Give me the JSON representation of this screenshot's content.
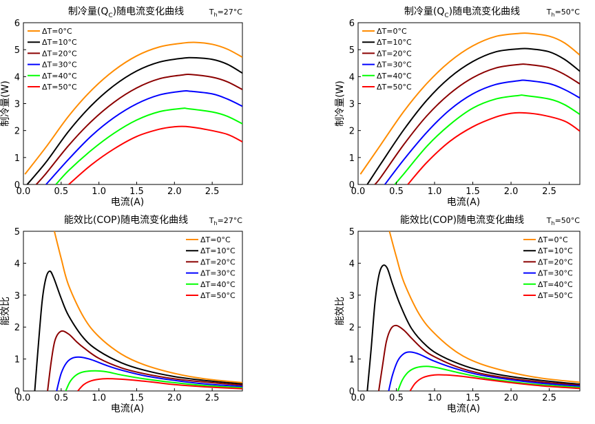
{
  "chart_data": [
    {
      "type": "line",
      "title": "制冷量(Q",
      "title_sub": "C",
      "title_suffix": ")随电流变化曲线",
      "condition_main": "T",
      "condition_sub": "h",
      "condition_suffix": "=27°C",
      "xlabel": "电流(A)",
      "ylabel": "制冷量(W)",
      "xlim": [
        0,
        2.9
      ],
      "ylim": [
        0,
        6
      ],
      "xticks": [
        "0.0",
        "0.5",
        "1.0",
        "1.5",
        "2.0",
        "2.5"
      ],
      "yticks": [
        "0",
        "1",
        "2",
        "3",
        "4",
        "5",
        "6"
      ],
      "legend_position": "top-left",
      "grid": false,
      "series": [
        {
          "name": "ΔT=0°C",
          "color": "#ff8c00",
          "x": [
            0.02,
            0.3,
            0.6,
            0.9,
            1.2,
            1.5,
            1.8,
            2.1,
            2.28,
            2.5,
            2.7,
            2.9
          ],
          "y": [
            0.38,
            1.39,
            2.54,
            3.49,
            4.23,
            4.77,
            5.1,
            5.24,
            5.27,
            5.2,
            5.02,
            4.72
          ]
        },
        {
          "name": "ΔT=10°C",
          "color": "#000000",
          "x": [
            0.05,
            0.3,
            0.6,
            0.9,
            1.2,
            1.5,
            1.8,
            2.1,
            2.25,
            2.5,
            2.7,
            2.9
          ],
          "y": [
            0.0,
            0.83,
            1.98,
            2.93,
            3.67,
            4.21,
            4.54,
            4.68,
            4.7,
            4.64,
            4.46,
            4.13
          ]
        },
        {
          "name": "ΔT=20°C",
          "color": "#8b0000",
          "x": [
            0.17,
            0.3,
            0.6,
            0.9,
            1.2,
            1.5,
            1.8,
            2.1,
            2.22,
            2.5,
            2.7,
            2.9
          ],
          "y": [
            0.0,
            0.41,
            1.45,
            2.34,
            3.05,
            3.58,
            3.92,
            4.06,
            4.08,
            3.98,
            3.81,
            3.52
          ]
        },
        {
          "name": "ΔT=30°C",
          "color": "#0000ff",
          "x": [
            0.3,
            0.6,
            0.9,
            1.2,
            1.5,
            1.8,
            2.1,
            2.2,
            2.5,
            2.7,
            2.9
          ],
          "y": [
            0.0,
            0.94,
            1.8,
            2.48,
            2.99,
            3.32,
            3.46,
            3.46,
            3.36,
            3.17,
            2.9
          ]
        },
        {
          "name": "ΔT=40°C",
          "color": "#00ff00",
          "x": [
            0.43,
            0.6,
            0.9,
            1.2,
            1.5,
            1.8,
            2.1,
            2.18,
            2.5,
            2.7,
            2.9
          ],
          "y": [
            0.0,
            0.52,
            1.27,
            1.9,
            2.39,
            2.7,
            2.82,
            2.81,
            2.69,
            2.53,
            2.25
          ]
        },
        {
          "name": "ΔT=50°C",
          "color": "#ff0000",
          "x": [
            0.6,
            0.9,
            1.2,
            1.5,
            1.8,
            2.0,
            2.15,
            2.4,
            2.7,
            2.9
          ],
          "y": [
            0.0,
            0.73,
            1.32,
            1.78,
            2.05,
            2.14,
            2.15,
            2.05,
            1.86,
            1.58
          ]
        }
      ]
    },
    {
      "type": "line",
      "title": "制冷量(Q",
      "title_sub": "C",
      "title_suffix": ")随电流变化曲线",
      "condition_main": "T",
      "condition_sub": "h",
      "condition_suffix": "=50°C",
      "xlabel": "电流(A)",
      "ylabel": "制冷量(W)",
      "xlim": [
        0,
        2.9
      ],
      "ylim": [
        0,
        6
      ],
      "xticks": [
        "0.0",
        "0.5",
        "1.0",
        "1.5",
        "2.0",
        "2.5"
      ],
      "yticks": [
        "0",
        "1",
        "2",
        "3",
        "4",
        "5",
        "6"
      ],
      "legend_position": "top-left",
      "grid": false,
      "series": [
        {
          "name": "ΔT=0°C",
          "color": "#ff8c00",
          "x": [
            0.03,
            0.3,
            0.6,
            0.9,
            1.2,
            1.5,
            1.8,
            2.1,
            2.25,
            2.5,
            2.7,
            2.9
          ],
          "y": [
            0.38,
            1.49,
            2.72,
            3.75,
            4.56,
            5.14,
            5.49,
            5.6,
            5.6,
            5.5,
            5.25,
            4.8
          ]
        },
        {
          "name": "ΔT=10°C",
          "color": "#000000",
          "x": [
            0.12,
            0.3,
            0.6,
            0.9,
            1.2,
            1.5,
            1.8,
            2.1,
            2.25,
            2.5,
            2.7,
            2.9
          ],
          "y": [
            0.0,
            0.78,
            2.04,
            3.13,
            3.97,
            4.56,
            4.92,
            5.03,
            5.03,
            4.92,
            4.64,
            4.2
          ]
        },
        {
          "name": "ΔT=20°C",
          "color": "#8b0000",
          "x": [
            0.22,
            0.3,
            0.6,
            0.9,
            1.2,
            1.5,
            1.8,
            2.1,
            2.22,
            2.5,
            2.7,
            2.9
          ],
          "y": [
            0.0,
            0.28,
            1.49,
            2.55,
            3.37,
            3.96,
            4.32,
            4.45,
            4.45,
            4.33,
            4.08,
            3.73
          ]
        },
        {
          "name": "ΔT=30°C",
          "color": "#0000ff",
          "x": [
            0.35,
            0.6,
            0.9,
            1.2,
            1.5,
            1.8,
            2.1,
            2.2,
            2.5,
            2.7,
            2.9
          ],
          "y": [
            0.0,
            0.93,
            1.94,
            2.77,
            3.36,
            3.71,
            3.85,
            3.86,
            3.74,
            3.52,
            3.21
          ]
        },
        {
          "name": "ΔT=40°C",
          "color": "#00ff00",
          "x": [
            0.48,
            0.6,
            0.9,
            1.2,
            1.5,
            1.8,
            2.1,
            2.18,
            2.5,
            2.7,
            2.9
          ],
          "y": [
            0.0,
            0.4,
            1.42,
            2.22,
            2.83,
            3.17,
            3.3,
            3.3,
            3.17,
            2.96,
            2.6
          ]
        },
        {
          "name": "ΔT=50°C",
          "color": "#ff0000",
          "x": [
            0.65,
            0.9,
            1.2,
            1.5,
            1.8,
            2.0,
            2.15,
            2.4,
            2.7,
            2.9
          ],
          "y": [
            0.0,
            0.82,
            1.6,
            2.14,
            2.5,
            2.64,
            2.66,
            2.58,
            2.35,
            1.98
          ]
        }
      ]
    },
    {
      "type": "line",
      "title": "能效比(COP)随电流变化曲线",
      "title_sub": "",
      "title_suffix": "",
      "condition_main": "T",
      "condition_sub": "h",
      "condition_suffix": "=27°C",
      "xlabel": "电流(A)",
      "ylabel": "能效比",
      "xlim": [
        0,
        2.9
      ],
      "ylim": [
        0,
        5
      ],
      "xticks": [
        "0.0",
        "0.5",
        "1.0",
        "1.5",
        "2.0",
        "2.5"
      ],
      "yticks": [
        "0",
        "1",
        "2",
        "3",
        "4",
        "5"
      ],
      "legend_position": "top-right",
      "grid": false,
      "series": [
        {
          "name": "ΔT=0°C",
          "color": "#ff8c00",
          "x": [
            0.41,
            0.5,
            0.6,
            0.8,
            1.0,
            1.3,
            1.6,
            2.0,
            2.4,
            2.9
          ],
          "y": [
            5.0,
            4.15,
            3.3,
            2.3,
            1.7,
            1.15,
            0.82,
            0.55,
            0.38,
            0.26
          ]
        },
        {
          "name": "ΔT=10°C",
          "color": "#000000",
          "x": [
            0.15,
            0.2,
            0.25,
            0.3,
            0.35,
            0.4,
            0.5,
            0.6,
            0.8,
            1.0,
            1.3,
            1.6,
            2.0,
            2.4,
            2.9
          ],
          "y": [
            0.0,
            1.5,
            2.85,
            3.55,
            3.75,
            3.55,
            2.9,
            2.35,
            1.65,
            1.25,
            0.88,
            0.65,
            0.45,
            0.33,
            0.22
          ]
        },
        {
          "name": "ΔT=20°C",
          "color": "#8b0000",
          "x": [
            0.32,
            0.37,
            0.42,
            0.5,
            0.6,
            0.7,
            0.8,
            1.0,
            1.3,
            1.6,
            2.0,
            2.4,
            2.9
          ],
          "y": [
            0.0,
            0.95,
            1.6,
            1.87,
            1.78,
            1.55,
            1.35,
            1.02,
            0.72,
            0.54,
            0.38,
            0.28,
            0.18
          ]
        },
        {
          "name": "ΔT=30°C",
          "color": "#0000ff",
          "x": [
            0.44,
            0.5,
            0.57,
            0.65,
            0.75,
            0.9,
            1.1,
            1.3,
            1.6,
            2.0,
            2.4,
            2.9
          ],
          "y": [
            0.0,
            0.55,
            0.88,
            1.03,
            1.06,
            0.98,
            0.8,
            0.65,
            0.48,
            0.33,
            0.22,
            0.14
          ]
        },
        {
          "name": "ΔT=40°C",
          "color": "#00ff00",
          "x": [
            0.56,
            0.62,
            0.7,
            0.8,
            0.95,
            1.1,
            1.3,
            1.6,
            2.0,
            2.4,
            2.9
          ],
          "y": [
            0.0,
            0.3,
            0.5,
            0.6,
            0.63,
            0.6,
            0.5,
            0.38,
            0.26,
            0.17,
            0.1
          ]
        },
        {
          "name": "ΔT=50°C",
          "color": "#ff0000",
          "x": [
            0.72,
            0.8,
            0.9,
            1.05,
            1.2,
            1.4,
            1.7,
            2.0,
            2.4,
            2.9
          ],
          "y": [
            0.0,
            0.2,
            0.32,
            0.38,
            0.38,
            0.35,
            0.28,
            0.2,
            0.13,
            0.07
          ]
        }
      ]
    },
    {
      "type": "line",
      "title": "能效比(COP)随电流变化曲线",
      "title_sub": "",
      "title_suffix": "",
      "condition_main": "T",
      "condition_sub": "h",
      "condition_suffix": "=50°C",
      "xlabel": "电流(A)",
      "ylabel": "能效比",
      "xlim": [
        0,
        2.9
      ],
      "ylim": [
        0,
        5
      ],
      "xticks": [
        "0.0",
        "0.5",
        "1.0",
        "1.5",
        "2.0",
        "2.5"
      ],
      "yticks": [
        "0",
        "1",
        "2",
        "3",
        "4",
        "5"
      ],
      "legend_position": "top-right",
      "grid": false,
      "series": [
        {
          "name": "ΔT=0°C",
          "color": "#ff8c00",
          "x": [
            0.41,
            0.5,
            0.6,
            0.8,
            1.0,
            1.3,
            1.6,
            2.0,
            2.4,
            2.9
          ],
          "y": [
            5.0,
            4.2,
            3.4,
            2.4,
            1.8,
            1.2,
            0.85,
            0.58,
            0.4,
            0.27
          ]
        },
        {
          "name": "ΔT=10°C",
          "color": "#000000",
          "x": [
            0.12,
            0.17,
            0.22,
            0.27,
            0.32,
            0.38,
            0.45,
            0.55,
            0.7,
            0.9,
            1.1,
            1.4,
            1.7,
            2.0,
            2.4,
            2.9
          ],
          "y": [
            0.0,
            1.3,
            2.75,
            3.6,
            3.92,
            3.85,
            3.35,
            2.7,
            1.95,
            1.4,
            1.08,
            0.78,
            0.58,
            0.45,
            0.33,
            0.21
          ]
        },
        {
          "name": "ΔT=20°C",
          "color": "#8b0000",
          "x": [
            0.27,
            0.32,
            0.37,
            0.43,
            0.5,
            0.6,
            0.7,
            0.85,
            1.0,
            1.3,
            1.6,
            2.0,
            2.4,
            2.9
          ],
          "y": [
            0.0,
            0.8,
            1.55,
            1.95,
            2.05,
            1.9,
            1.65,
            1.3,
            1.07,
            0.75,
            0.55,
            0.39,
            0.28,
            0.18
          ]
        },
        {
          "name": "ΔT=30°C",
          "color": "#0000ff",
          "x": [
            0.4,
            0.45,
            0.52,
            0.6,
            0.68,
            0.8,
            1.0,
            1.3,
            1.6,
            2.0,
            2.4,
            2.9
          ],
          "y": [
            0.0,
            0.5,
            0.95,
            1.17,
            1.22,
            1.15,
            0.93,
            0.68,
            0.5,
            0.35,
            0.24,
            0.15
          ]
        },
        {
          "name": "ΔT=40°C",
          "color": "#00ff00",
          "x": [
            0.52,
            0.58,
            0.66,
            0.76,
            0.9,
            1.05,
            1.3,
            1.6,
            2.0,
            2.4,
            2.9
          ],
          "y": [
            0.0,
            0.35,
            0.6,
            0.73,
            0.77,
            0.72,
            0.58,
            0.43,
            0.29,
            0.19,
            0.11
          ]
        },
        {
          "name": "ΔT=50°C",
          "color": "#ff0000",
          "x": [
            0.68,
            0.75,
            0.85,
            1.0,
            1.15,
            1.35,
            1.6,
            2.0,
            2.4,
            2.9
          ],
          "y": [
            0.0,
            0.25,
            0.42,
            0.5,
            0.5,
            0.46,
            0.38,
            0.26,
            0.16,
            0.08
          ]
        }
      ]
    }
  ]
}
